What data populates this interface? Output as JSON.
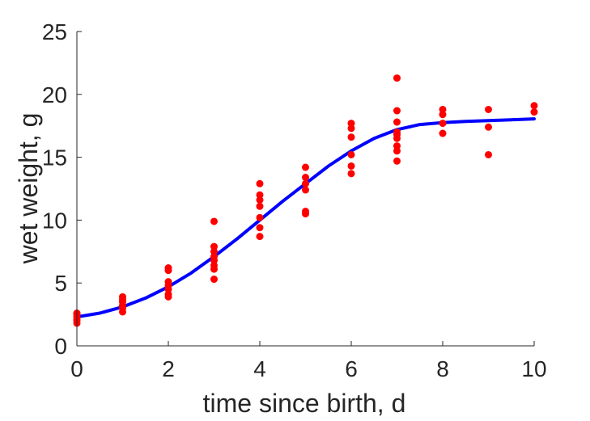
{
  "chart_data": {
    "type": "scatter",
    "title": "",
    "xlabel": "time since birth, d",
    "ylabel": "wet weight, g",
    "xlim": [
      0,
      10
    ],
    "ylim": [
      0,
      25
    ],
    "xticks": [
      0,
      2,
      4,
      6,
      8,
      10
    ],
    "yticks": [
      0,
      5,
      10,
      15,
      20,
      25
    ],
    "grid": false,
    "series": [
      {
        "kind": "scatter",
        "color": "#ff0000",
        "points": [
          [
            0,
            1.8
          ],
          [
            0,
            2.0
          ],
          [
            0,
            2.1
          ],
          [
            0,
            2.3
          ],
          [
            0,
            2.5
          ],
          [
            0,
            2.6
          ],
          [
            1,
            2.7
          ],
          [
            1,
            3.0
          ],
          [
            1,
            3.2
          ],
          [
            1,
            3.5
          ],
          [
            1,
            3.7
          ],
          [
            1,
            3.9
          ],
          [
            2,
            3.9
          ],
          [
            2,
            4.1
          ],
          [
            2,
            4.5
          ],
          [
            2,
            4.8
          ],
          [
            2,
            5.1
          ],
          [
            2,
            6.0
          ],
          [
            2,
            6.2
          ],
          [
            3,
            5.3
          ],
          [
            3,
            6.1
          ],
          [
            3,
            6.4
          ],
          [
            3,
            6.8
          ],
          [
            3,
            7.1
          ],
          [
            3,
            7.5
          ],
          [
            3,
            7.9
          ],
          [
            3,
            9.9
          ],
          [
            4,
            8.7
          ],
          [
            4,
            9.4
          ],
          [
            4,
            10.2
          ],
          [
            4,
            11.1
          ],
          [
            4,
            11.6
          ],
          [
            4,
            12.0
          ],
          [
            4,
            12.9
          ],
          [
            5,
            10.5
          ],
          [
            5,
            10.7
          ],
          [
            5,
            12.4
          ],
          [
            5,
            12.9
          ],
          [
            5,
            13.4
          ],
          [
            5,
            14.2
          ],
          [
            6,
            13.7
          ],
          [
            6,
            14.3
          ],
          [
            6,
            15.2
          ],
          [
            6,
            16.6
          ],
          [
            6,
            17.3
          ],
          [
            6,
            17.7
          ],
          [
            7,
            14.7
          ],
          [
            7,
            15.5
          ],
          [
            7,
            15.9
          ],
          [
            7,
            16.5
          ],
          [
            7,
            16.8
          ],
          [
            7,
            17.0
          ],
          [
            7,
            17.8
          ],
          [
            7,
            18.7
          ],
          [
            7,
            21.3
          ],
          [
            8,
            16.9
          ],
          [
            8,
            17.7
          ],
          [
            8,
            18.4
          ],
          [
            8,
            18.8
          ],
          [
            9,
            15.2
          ],
          [
            9,
            17.4
          ],
          [
            9,
            18.8
          ],
          [
            10,
            18.6
          ],
          [
            10,
            19.1
          ]
        ]
      },
      {
        "kind": "line",
        "color": "#0000ff",
        "points": [
          [
            0,
            2.3
          ],
          [
            0.5,
            2.6
          ],
          [
            1,
            3.1
          ],
          [
            1.5,
            3.8
          ],
          [
            2,
            4.7
          ],
          [
            2.5,
            5.8
          ],
          [
            3,
            7.1
          ],
          [
            3.5,
            8.5
          ],
          [
            4,
            10.0
          ],
          [
            4.5,
            11.5
          ],
          [
            5,
            12.9
          ],
          [
            5.5,
            14.3
          ],
          [
            6,
            15.5
          ],
          [
            6.5,
            16.5
          ],
          [
            7,
            17.2
          ],
          [
            7.5,
            17.6
          ],
          [
            8,
            17.75
          ],
          [
            8.5,
            17.85
          ],
          [
            9,
            17.92
          ],
          [
            9.5,
            17.98
          ],
          [
            10,
            18.05
          ]
        ]
      }
    ]
  }
}
